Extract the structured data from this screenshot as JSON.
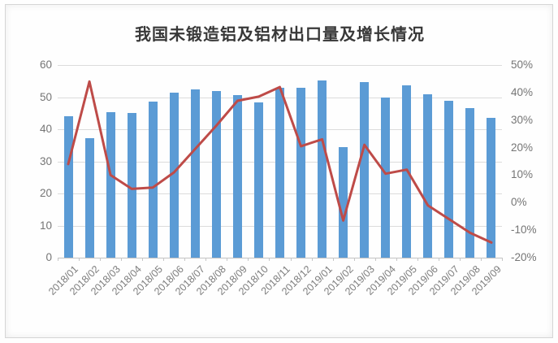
{
  "chart_data": {
    "type": "bar",
    "subtype": "combo-bar-line-dual-axis",
    "title": "我国未锻造铝及铝材出口量及增长情况",
    "legend": "off",
    "grid": "horizontal-left-axis-only",
    "categories": [
      "2018/01",
      "2018/02",
      "2018/03",
      "2018/04",
      "2018/05",
      "2018/06",
      "2018/07",
      "2018/08",
      "2018/09",
      "2018/10",
      "2018/11",
      "2018/12",
      "2019/01",
      "2019/02",
      "2019/03",
      "2019/04",
      "2019/05",
      "2019/06",
      "2019/07",
      "2019/08",
      "2019/09"
    ],
    "series": [
      {
        "name": "bars",
        "render": "bar",
        "axis": "left",
        "values": [
          44.0,
          37.2,
          45.4,
          45.1,
          48.5,
          51.3,
          52.3,
          52.0,
          50.7,
          48.4,
          52.8,
          53.0,
          55.1,
          34.4,
          54.7,
          49.8,
          53.6,
          51.0,
          48.9,
          46.7,
          43.6
        ]
      },
      {
        "name": "line",
        "render": "line",
        "axis": "right",
        "values": [
          14,
          44,
          10,
          5,
          5.5,
          11,
          19.5,
          28,
          37,
          38.5,
          42,
          20.5,
          23,
          -6.5,
          21,
          10.5,
          12,
          -1,
          -6,
          -11,
          -14.5
        ]
      }
    ],
    "left_axis": {
      "min": 0,
      "max": 60,
      "ticks": [
        60,
        50,
        40,
        30,
        20,
        10,
        0
      ],
      "tick_labels": [
        "60",
        "50",
        "40",
        "30",
        "20",
        "10",
        "0"
      ]
    },
    "right_axis": {
      "min": -20,
      "max": 50,
      "ticks": [
        50,
        40,
        30,
        20,
        10,
        0,
        -10,
        -20
      ],
      "tick_labels": [
        "50%",
        "40%",
        "30%",
        "20%",
        "10%",
        "0%",
        "-10%",
        "-20%"
      ]
    },
    "colors": {
      "bar": "#5B9BD5",
      "line": "#BE4B48",
      "grid": "#DCDCDC",
      "axis_line": "#C2C2C2",
      "tick": "#C6C6C6",
      "axis_text": "#757575",
      "x_label_text": "#7D7D7D",
      "title_text": "#383838",
      "background": "#FFFFFF",
      "frame_border": "#D6D6D6"
    }
  }
}
